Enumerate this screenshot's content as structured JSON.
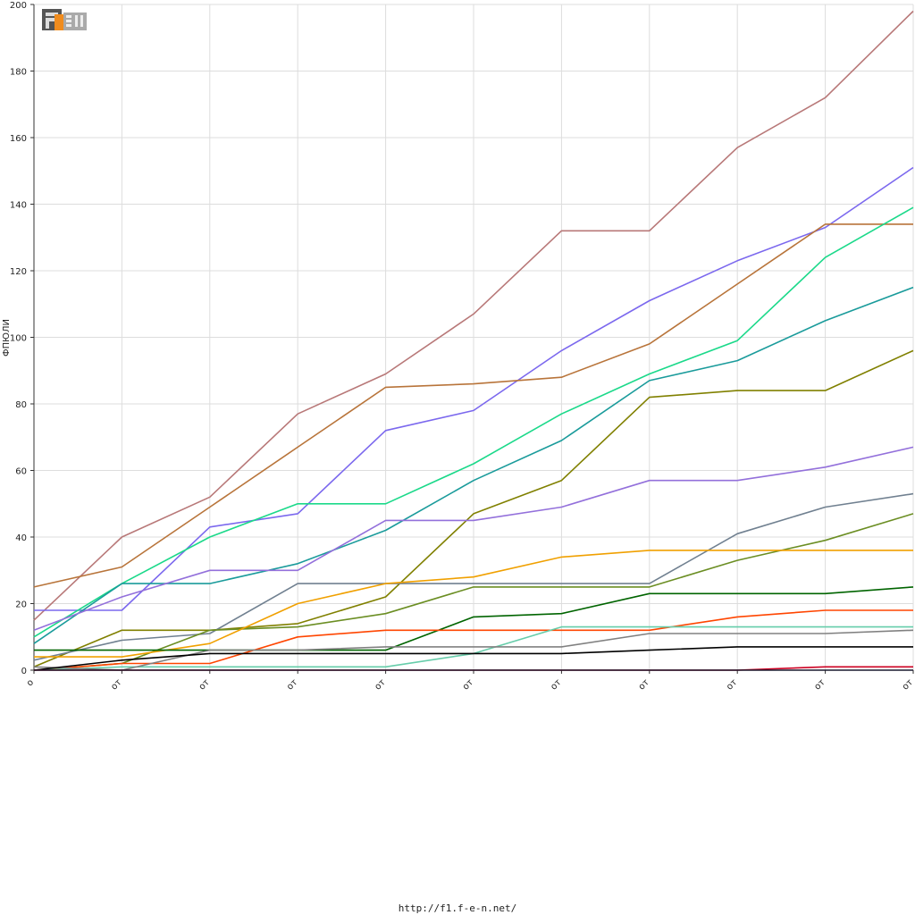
{
  "logo": {
    "text": "F1EN",
    "colors": {
      "dark": "#555555",
      "orange": "#f08c1e",
      "light": "#aaaaaa"
    }
  },
  "footer": {
    "url": "http://f1.f-e-n.net/"
  },
  "chart_data": {
    "type": "line",
    "ylabel": "ФПЮЛИ",
    "xlabel": "",
    "ylim": [
      0,
      200
    ],
    "yticks": [
      0,
      20,
      40,
      60,
      80,
      100,
      120,
      140,
      160,
      180,
      200
    ],
    "categories": [
      "о",
      "от",
      "от",
      "от",
      "от",
      "от",
      "от",
      "от",
      "от",
      "от",
      "от"
    ],
    "grid": true,
    "series": [
      {
        "color": "#b87878",
        "values": [
          15,
          40,
          52,
          77,
          89,
          107,
          132,
          132,
          157,
          172,
          198
        ]
      },
      {
        "color": "#7b68ee",
        "values": [
          18,
          18,
          43,
          47,
          72,
          78,
          96,
          111,
          123,
          133,
          151
        ]
      },
      {
        "color": "#b8743a",
        "values": [
          25,
          31,
          49,
          67,
          85,
          86,
          88,
          98,
          116,
          134,
          134
        ]
      },
      {
        "color": "#1bd98a",
        "values": [
          10,
          26,
          40,
          50,
          50,
          62,
          77,
          89,
          99,
          124,
          139
        ]
      },
      {
        "color": "#1a9b9b",
        "values": [
          8,
          26,
          26,
          32,
          42,
          57,
          69,
          87,
          93,
          105,
          115
        ]
      },
      {
        "color": "#808000",
        "values": [
          1,
          12,
          12,
          14,
          22,
          47,
          57,
          82,
          84,
          84,
          96
        ]
      },
      {
        "color": "#9370db",
        "values": [
          12,
          22,
          30,
          30,
          45,
          45,
          49,
          57,
          57,
          61,
          67
        ]
      },
      {
        "color": "#708090",
        "values": [
          3,
          9,
          11,
          26,
          26,
          26,
          26,
          26,
          41,
          49,
          53
        ]
      },
      {
        "color": "#6b8e23",
        "values": [
          0,
          2,
          12,
          13,
          17,
          25,
          25,
          25,
          33,
          39,
          47
        ]
      },
      {
        "color": "#f0a000",
        "values": [
          4,
          4,
          8,
          20,
          26,
          28,
          34,
          36,
          36,
          36,
          36
        ]
      },
      {
        "color": "#006400",
        "values": [
          6,
          6,
          6,
          6,
          6,
          16,
          17,
          23,
          23,
          23,
          25
        ]
      },
      {
        "color": "#ff4500",
        "values": [
          0,
          2,
          2,
          10,
          12,
          12,
          12,
          12,
          16,
          18,
          18
        ]
      },
      {
        "color": "#66cdaa",
        "values": [
          0,
          1,
          1,
          1,
          1,
          5,
          13,
          13,
          13,
          13,
          13
        ]
      },
      {
        "color": "#808080",
        "values": [
          1,
          0,
          6,
          6,
          7,
          7,
          7,
          11,
          11,
          11,
          12
        ]
      },
      {
        "color": "#000000",
        "values": [
          0,
          3,
          5,
          5,
          5,
          5,
          5,
          6,
          7,
          7,
          7
        ]
      },
      {
        "color": "#cc0022",
        "values": [
          0,
          0,
          0,
          0,
          0,
          0,
          0,
          0,
          0,
          1,
          1
        ]
      },
      {
        "color": "#1a1a2e",
        "values": [
          0,
          0,
          0,
          0,
          0,
          0,
          0,
          0,
          0,
          0,
          0
        ]
      }
    ]
  }
}
